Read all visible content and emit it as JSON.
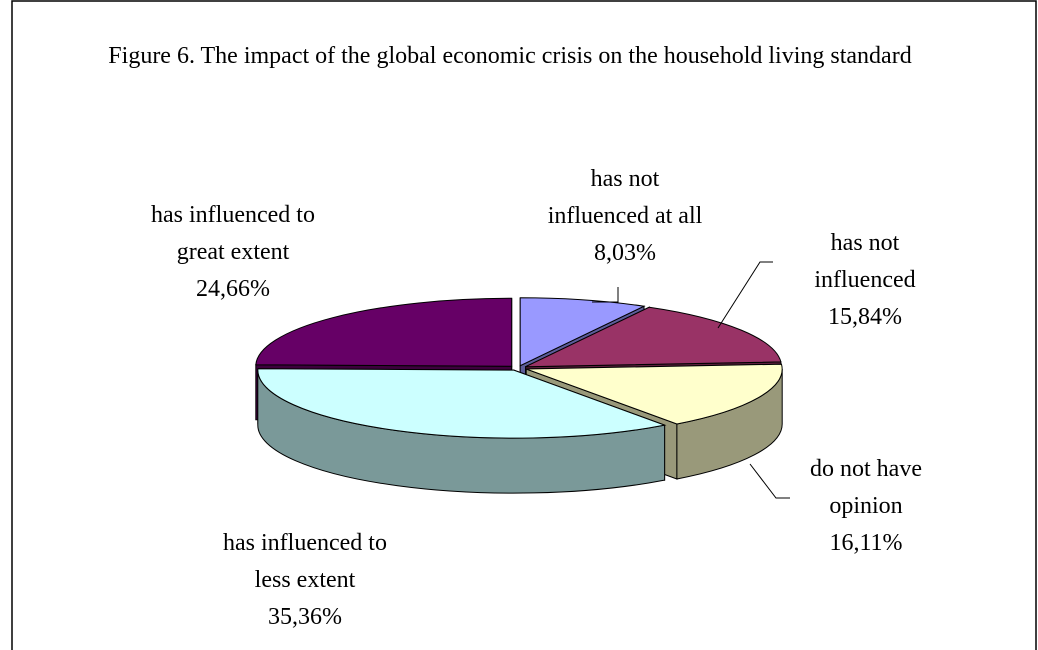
{
  "chart_data": {
    "type": "pie",
    "title": "Figure 6. The impact of the global economic crisis on the household living standard",
    "categories": [
      "has not\ninfluenced at all",
      "has not\ninfluenced",
      "do not have\nopinion",
      "has influenced to\nless extent",
      "has influenced to\ngreat extent"
    ],
    "values": [
      8.03,
      15.84,
      16.11,
      35.36,
      24.66
    ],
    "value_labels": [
      "8,03%",
      "15,84%",
      "16,11%",
      "35,36%",
      "24,66%"
    ],
    "colors": [
      "#9999ff",
      "#993366",
      "#ffffcc",
      "#ccffff",
      "#660066"
    ]
  }
}
